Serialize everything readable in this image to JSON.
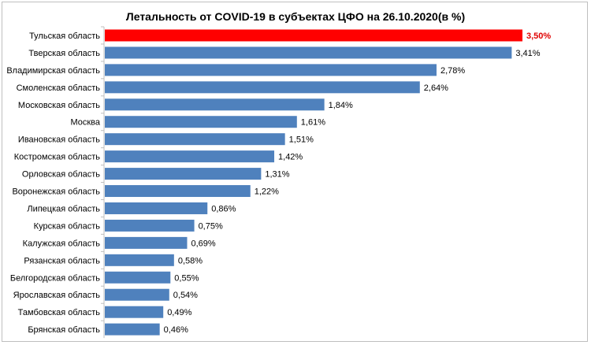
{
  "chart_data": {
    "type": "bar",
    "orientation": "horizontal",
    "title": "Летальность от COVID-19 в субъектах ЦФО на 26.10.2020(в %)",
    "categories": [
      "Тульская область",
      "Тверская область",
      "Владимирская область",
      "Смоленская область",
      "Московская область",
      "Москва",
      "Ивановская область",
      "Костромская область",
      "Орловская область",
      "Воронежская область",
      "Липецкая область",
      "Курская область",
      "Калужская область",
      "Рязанская область",
      "Белгородская область",
      "Ярославская область",
      "Тамбовская область",
      "Брянская область"
    ],
    "values": [
      3.5,
      3.41,
      2.78,
      2.64,
      1.84,
      1.61,
      1.51,
      1.42,
      1.31,
      1.22,
      0.86,
      0.75,
      0.69,
      0.58,
      0.55,
      0.54,
      0.49,
      0.46
    ],
    "value_labels": [
      "3,50%",
      "3,41%",
      "2,78%",
      "2,64%",
      "1,84%",
      "1,61%",
      "1,51%",
      "1,42%",
      "1,31%",
      "1,22%",
      "0,86%",
      "0,75%",
      "0,69%",
      "0,58%",
      "0,55%",
      "0,54%",
      "0,49%",
      "0,46%"
    ],
    "highlight_index": 0,
    "colors": {
      "bar": "#4f81bd",
      "highlight": "#ff0000",
      "highlight_label": "#e00000"
    },
    "xlim": [
      0,
      3.5
    ],
    "grid": false,
    "legend": "none"
  }
}
